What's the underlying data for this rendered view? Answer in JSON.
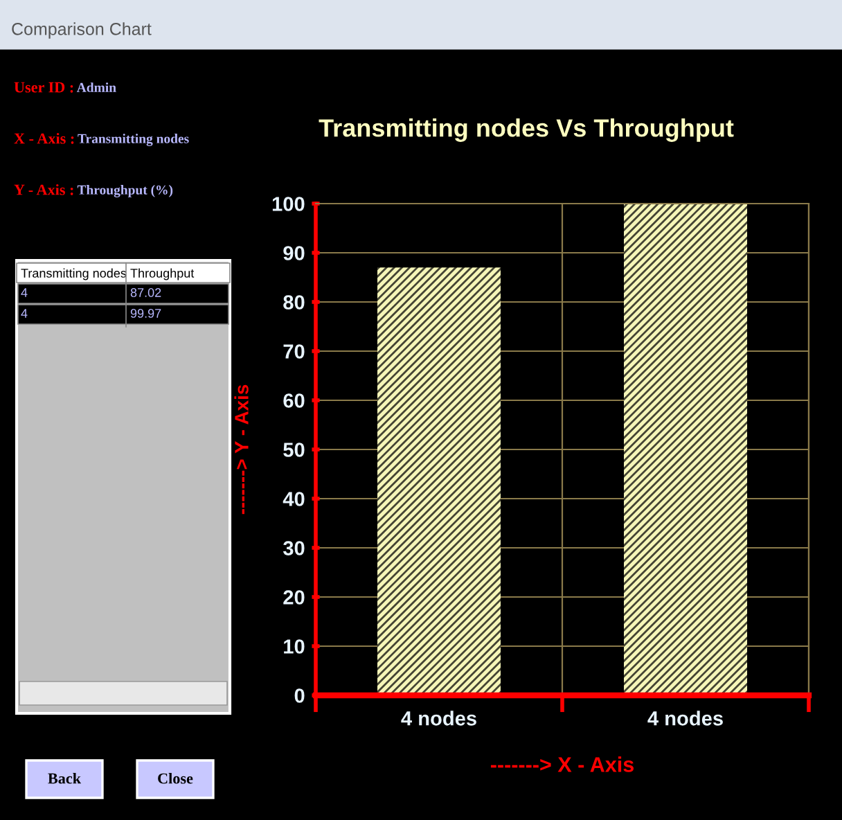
{
  "chart_data": {
    "type": "bar",
    "title": "Transmitting nodes Vs Throughput",
    "xlabel": "-------> X - Axis",
    "ylabel": "-------> Y - Axis",
    "categories": [
      "4 nodes",
      "4 nodes"
    ],
    "values": [
      87.02,
      99.97
    ],
    "color": "#f6f6b8",
    "ylim": [
      0,
      100
    ],
    "yticks": [
      0,
      10,
      20,
      30,
      40,
      50,
      60,
      70,
      80,
      90,
      100
    ],
    "grid": true,
    "annotations": [
      "Comparison Chart",
      "User ID : Admin",
      "X - Axis : Transmitting nodes",
      "Y - Axis : Throughput (%)",
      "Transmitting nodes",
      "Throughput",
      "4",
      "87.02",
      "4",
      "99.97",
      "Back",
      "Close"
    ]
  }
}
